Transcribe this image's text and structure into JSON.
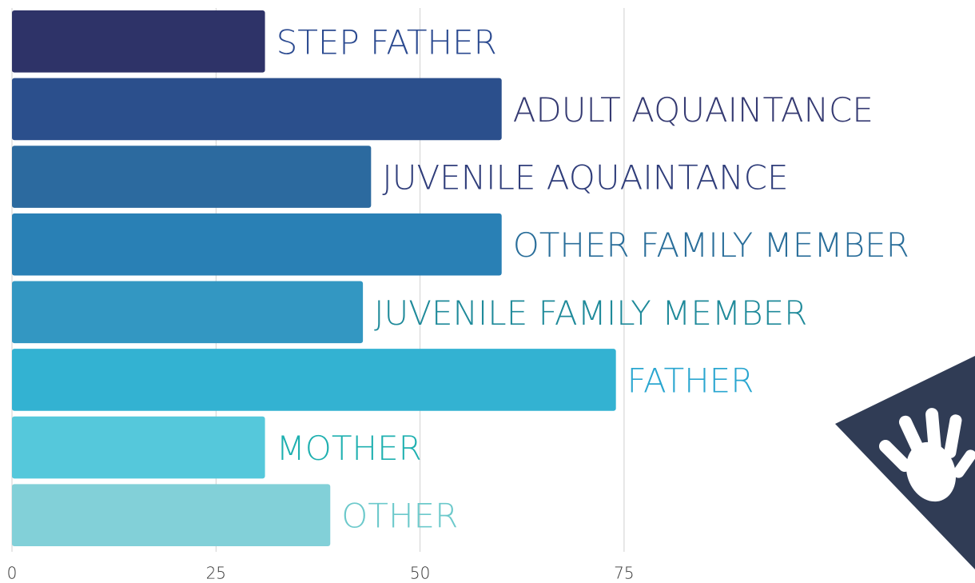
{
  "chart_data": {
    "type": "barh",
    "categories": [
      "STEP FATHER",
      "ADULT AQUAINTANCE",
      "JUVENILE AQUAINTANCE",
      "OTHER FAMILY MEMBER",
      "JUVENILE FAMILY MEMBER",
      "FATHER",
      "MOTHER",
      "OTHER"
    ],
    "values": [
      31,
      60,
      44,
      60,
      43,
      74,
      31,
      39
    ],
    "colors": [
      "#2e3368",
      "#2b4f8c",
      "#2c6a9f",
      "#2980b5",
      "#3397c2",
      "#33b2d2",
      "#55c8db",
      "#82d0d8"
    ],
    "label_colors": [
      "#2b4a90",
      "#353a72",
      "#2f3d7a",
      "#2a6e9a",
      "#1f8a9a",
      "#2aa6d0",
      "#1fb0b0",
      "#6cc9cb"
    ],
    "xlim": [
      0,
      118
    ],
    "xticks": [
      0,
      25,
      50,
      75
    ],
    "grid": true
  }
}
